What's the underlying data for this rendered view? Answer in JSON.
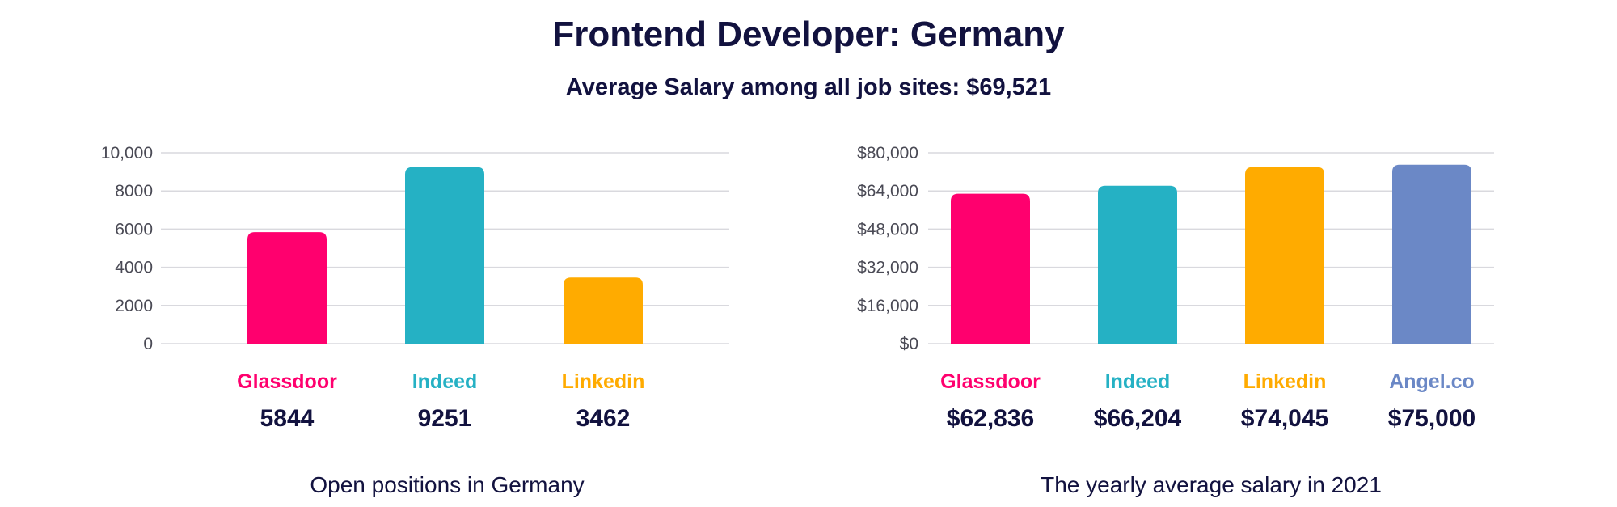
{
  "header": {
    "title": "Frontend Developer: Germany",
    "subtitle": "Average Salary among all job sites: $69,521"
  },
  "chart_data": [
    {
      "type": "bar",
      "categories": [
        "Glassdoor",
        "Indeed",
        "Linkedin"
      ],
      "values": [
        5844,
        9251,
        3462
      ],
      "value_labels": [
        "5844",
        "9251",
        "3462"
      ],
      "colors": [
        "#ff006e",
        "#25b1c4",
        "#ffab00"
      ],
      "caption": "Open positions in Germany",
      "ylim": [
        0,
        10000
      ],
      "y_ticks": [
        0,
        2000,
        4000,
        6000,
        8000,
        10000
      ],
      "y_tick_labels": [
        "0",
        "2000",
        "4000",
        "6000",
        "8000",
        "10,000"
      ],
      "grid": true
    },
    {
      "type": "bar",
      "categories": [
        "Glassdoor",
        "Indeed",
        "Linkedin",
        "Angel.co"
      ],
      "values": [
        62836,
        66204,
        74045,
        75000
      ],
      "value_labels": [
        "$62,836",
        "$66,204",
        "$74,045",
        "$75,000"
      ],
      "colors": [
        "#ff006e",
        "#25b1c4",
        "#ffab00",
        "#6b88c6"
      ],
      "caption": "The yearly average salary in 2021",
      "ylim": [
        0,
        80000
      ],
      "y_ticks": [
        0,
        16000,
        32000,
        48000,
        64000,
        80000
      ],
      "y_tick_labels": [
        "$0",
        "$16,000",
        "$32,000",
        "$48,000",
        "$64,000",
        "$80,000"
      ],
      "grid": true
    }
  ]
}
